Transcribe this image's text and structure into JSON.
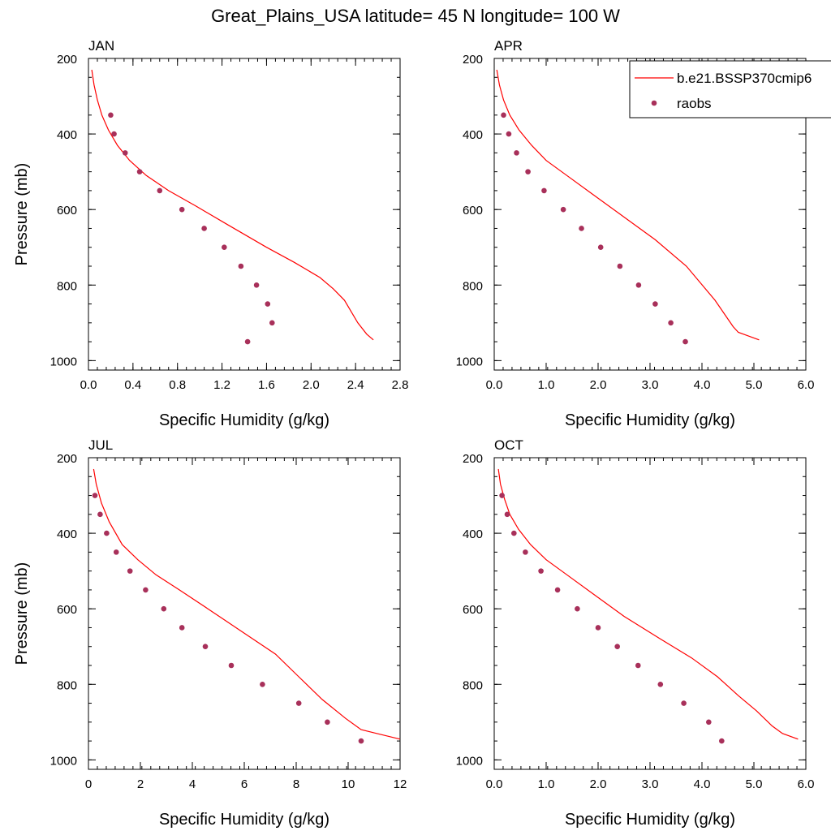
{
  "figure": {
    "title": "Great_Plains_USA  latitude= 45 N longitude= 100 W"
  },
  "colors": {
    "model": "#ff0000",
    "raobs": "#a8305a"
  },
  "legend": {
    "model_label": "b.e21.BSSP370cmip6",
    "raobs_label": "raobs",
    "placement": "top-right of APR panel"
  },
  "chart_data": [
    {
      "type": "line",
      "panel_title": "JAN",
      "xlabel": "Specific Humidity (g/kg)",
      "ylabel": "Pressure (mb)",
      "xlim": [
        0,
        2.8
      ],
      "ylim": [
        200,
        1025
      ],
      "y_inverted": true,
      "xticks": [
        0,
        0.4,
        0.8,
        1.2,
        1.6,
        2.0,
        2.4,
        2.8
      ],
      "xtick_labels": [
        "0.0",
        "0.4",
        "0.8",
        "1.2",
        "1.6",
        "2.0",
        "2.4",
        "2.8"
      ],
      "yticks": [
        200,
        400,
        600,
        800,
        1000
      ],
      "ytick_labels": [
        "200",
        "400",
        "600",
        "800",
        "1000"
      ],
      "series": [
        {
          "name": "b.e21.BSSP370cmip6",
          "kind": "line",
          "x": [
            0.03,
            0.05,
            0.08,
            0.12,
            0.18,
            0.26,
            0.37,
            0.52,
            0.72,
            0.96,
            1.25,
            1.6,
            1.85,
            2.08,
            2.2,
            2.3,
            2.36,
            2.42,
            2.5,
            2.56
          ],
          "y": [
            230,
            270,
            310,
            350,
            390,
            430,
            470,
            510,
            550,
            590,
            640,
            700,
            740,
            780,
            810,
            840,
            870,
            900,
            930,
            945
          ]
        },
        {
          "name": "raobs",
          "kind": "scatter",
          "x": [
            0.2,
            0.23,
            0.33,
            0.46,
            0.64,
            0.84,
            1.04,
            1.22,
            1.37,
            1.51,
            1.61,
            1.65,
            1.43
          ],
          "y": [
            350,
            400,
            450,
            500,
            550,
            600,
            650,
            700,
            750,
            800,
            850,
            900,
            950
          ]
        }
      ]
    },
    {
      "type": "line",
      "panel_title": "APR",
      "xlabel": "Specific Humidity (g/kg)",
      "ylabel": "",
      "xlim": [
        0,
        6.0
      ],
      "ylim": [
        200,
        1025
      ],
      "y_inverted": true,
      "xticks": [
        0,
        1,
        2,
        3,
        4,
        5,
        6
      ],
      "xtick_labels": [
        "0.0",
        "1.0",
        "2.0",
        "3.0",
        "4.0",
        "5.0",
        "6.0"
      ],
      "yticks": [
        200,
        400,
        600,
        800,
        1000
      ],
      "ytick_labels": [
        "200",
        "400",
        "600",
        "800",
        "1000"
      ],
      "series": [
        {
          "name": "b.e21.BSSP370cmip6",
          "kind": "line",
          "x": [
            0.05,
            0.1,
            0.18,
            0.3,
            0.48,
            0.72,
            1.0,
            1.4,
            1.9,
            2.5,
            3.1,
            3.7,
            4.25,
            4.45,
            4.6,
            4.7,
            4.8,
            5.1
          ],
          "y": [
            230,
            270,
            310,
            350,
            390,
            430,
            470,
            510,
            560,
            620,
            680,
            750,
            840,
            880,
            910,
            925,
            930,
            945
          ]
        },
        {
          "name": "raobs",
          "kind": "scatter",
          "x": [
            0.18,
            0.28,
            0.43,
            0.65,
            0.96,
            1.33,
            1.68,
            2.05,
            2.42,
            2.78,
            3.1,
            3.4,
            3.68
          ],
          "y": [
            350,
            400,
            450,
            500,
            550,
            600,
            650,
            700,
            750,
            800,
            850,
            900,
            950
          ]
        }
      ]
    },
    {
      "type": "line",
      "panel_title": "JUL",
      "xlabel": "Specific Humidity (g/kg)",
      "ylabel": "Pressure (mb)",
      "xlim": [
        0,
        12
      ],
      "ylim": [
        200,
        1025
      ],
      "y_inverted": true,
      "xticks": [
        0,
        2,
        4,
        6,
        8,
        10,
        12
      ],
      "xtick_labels": [
        "0",
        "2",
        "4",
        "6",
        "8",
        "10",
        "12"
      ],
      "yticks": [
        200,
        400,
        600,
        800,
        1000
      ],
      "ytick_labels": [
        "200",
        "400",
        "600",
        "800",
        "1000"
      ],
      "series": [
        {
          "name": "b.e21.BSSP370cmip6",
          "kind": "line",
          "x": [
            0.2,
            0.3,
            0.5,
            0.8,
            1.3,
            1.9,
            2.6,
            3.5,
            4.6,
            5.9,
            7.2,
            8.1,
            9.0,
            9.9,
            10.5,
            11.1,
            12.0
          ],
          "y": [
            230,
            270,
            320,
            370,
            430,
            470,
            510,
            550,
            600,
            660,
            720,
            780,
            840,
            890,
            920,
            930,
            945
          ]
        },
        {
          "name": "raobs",
          "kind": "scatter",
          "x": [
            0.25,
            0.45,
            0.7,
            1.07,
            1.6,
            2.2,
            2.9,
            3.6,
            4.5,
            5.5,
            6.7,
            8.1,
            9.2,
            10.5
          ],
          "y": [
            300,
            350,
            400,
            450,
            500,
            550,
            600,
            650,
            700,
            750,
            800,
            850,
            900,
            950
          ]
        }
      ]
    },
    {
      "type": "line",
      "panel_title": "OCT",
      "xlabel": "Specific Humidity (g/kg)",
      "ylabel": "",
      "xlim": [
        0,
        6.0
      ],
      "ylim": [
        200,
        1025
      ],
      "y_inverted": true,
      "xticks": [
        0,
        1,
        2,
        3,
        4,
        5,
        6
      ],
      "xtick_labels": [
        "0.0",
        "1.0",
        "2.0",
        "3.0",
        "4.0",
        "5.0",
        "6.0"
      ],
      "yticks": [
        200,
        400,
        600,
        800,
        1000
      ],
      "ytick_labels": [
        "200",
        "400",
        "600",
        "800",
        "1000"
      ],
      "series": [
        {
          "name": "b.e21.BSSP370cmip6",
          "kind": "line",
          "x": [
            0.08,
            0.12,
            0.2,
            0.3,
            0.47,
            0.7,
            1.0,
            1.4,
            1.9,
            2.5,
            3.2,
            3.8,
            4.3,
            4.7,
            5.05,
            5.35,
            5.55,
            5.85
          ],
          "y": [
            230,
            270,
            310,
            350,
            390,
            430,
            470,
            510,
            560,
            620,
            680,
            730,
            780,
            830,
            870,
            910,
            930,
            945
          ]
        },
        {
          "name": "raobs",
          "kind": "scatter",
          "x": [
            0.15,
            0.25,
            0.38,
            0.6,
            0.9,
            1.22,
            1.6,
            2.0,
            2.37,
            2.77,
            3.2,
            3.65,
            4.13,
            4.38
          ],
          "y": [
            300,
            350,
            400,
            450,
            500,
            550,
            600,
            650,
            700,
            750,
            800,
            850,
            900,
            950
          ]
        }
      ]
    }
  ]
}
